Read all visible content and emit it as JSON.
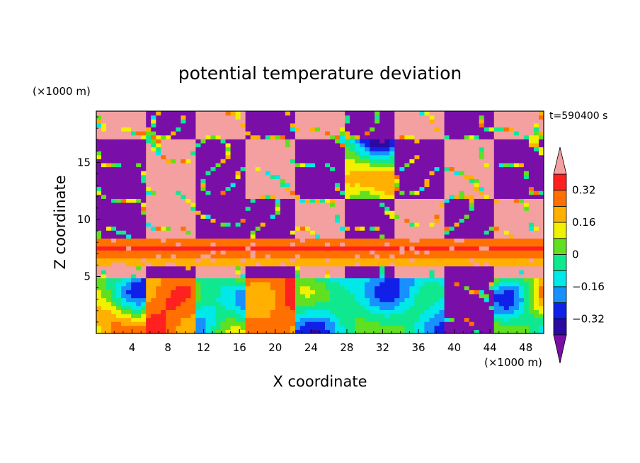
{
  "chart_data": {
    "type": "heatmap",
    "title": "potential temperature deviation",
    "xlabel": "X coordinate",
    "ylabel": "Z coordinate",
    "x_unit": "(×1000 m)",
    "y_unit": "(×1000 m)",
    "time_label": "t=590400 s",
    "xlim": [
      0,
      50
    ],
    "ylim": [
      0,
      19.5
    ],
    "x_ticks": [
      4,
      8,
      12,
      16,
      20,
      24,
      28,
      32,
      36,
      40,
      44,
      48
    ],
    "y_ticks": [
      5,
      10,
      15
    ],
    "colorbar": {
      "levels": [
        -0.4,
        -0.32,
        -0.24,
        -0.16,
        -0.08,
        0,
        0.08,
        0.16,
        0.24,
        0.32,
        0.4
      ],
      "labels": [
        "0.32",
        "0.16",
        "0",
        "−0.16",
        "−0.32"
      ],
      "label_values": [
        0.32,
        0.16,
        0,
        -0.16,
        -0.32
      ],
      "colors": [
        "#7a0fa8",
        "#2a0aa0",
        "#1020e8",
        "#1890ff",
        "#00e8e8",
        "#10e890",
        "#60e020",
        "#f0f000",
        "#ffb000",
        "#ff7000",
        "#ff2020",
        "#f4a0a0"
      ],
      "extend": "both"
    },
    "field": [
      {
        "z": [
          17,
          19.5
        ],
        "pattern": [
          "pink",
          "purple",
          "pink",
          "purple",
          "pink",
          "purple",
          "pink",
          "purple",
          "pink"
        ]
      },
      {
        "z": [
          12,
          17
        ],
        "pattern": [
          "purple",
          "pink",
          "purple",
          "pink",
          "purple",
          "mixed",
          "purple",
          "pink",
          "purple"
        ]
      },
      {
        "z": [
          8.5,
          12
        ],
        "pattern": [
          "purple",
          "pink",
          "purple",
          "purple",
          "pink",
          "purple",
          "pink",
          "purple",
          "pink"
        ]
      },
      {
        "z": [
          6,
          8.5
        ],
        "pattern": [
          "band"
        ]
      },
      {
        "z": [
          5,
          6
        ],
        "pattern": [
          "pink",
          "purple",
          "pink",
          "purple",
          "pink",
          "purple",
          "pink",
          "purple",
          "pink"
        ]
      },
      {
        "z": [
          0,
          5
        ],
        "pattern": [
          "mixed",
          "warm",
          "mixed",
          "warm",
          "blue",
          "cool",
          "blue",
          "purple",
          "mixed"
        ]
      }
    ]
  }
}
